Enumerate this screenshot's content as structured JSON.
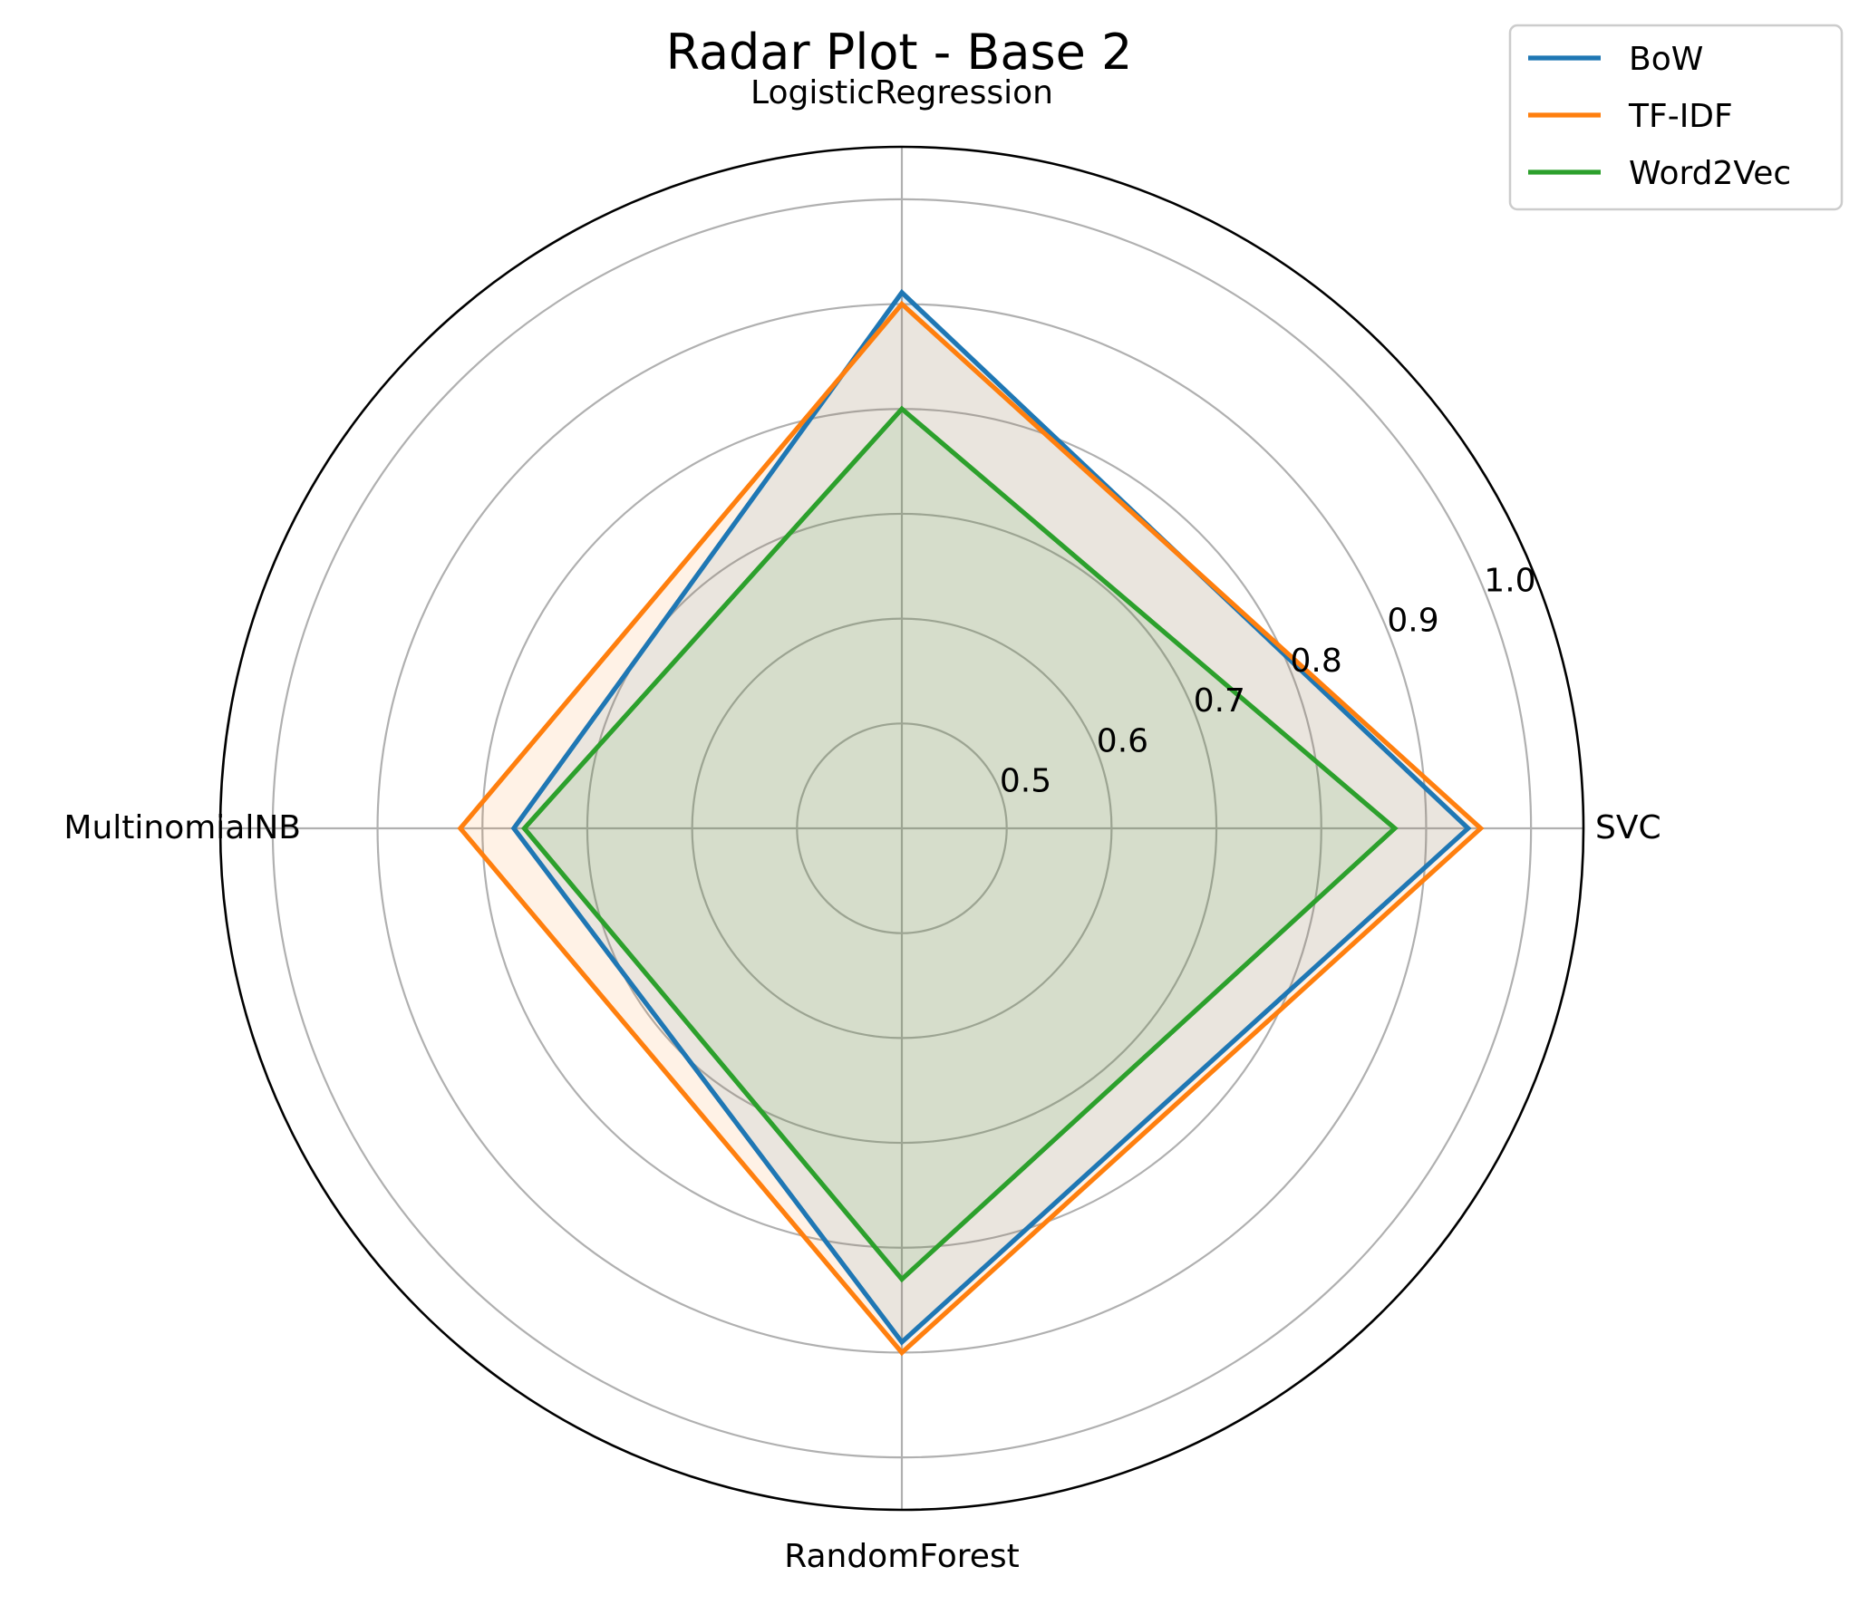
{
  "chart_data": {
    "type": "radar",
    "title": "Radar Plot - Base 2",
    "categories": [
      "LogisticRegression",
      "SVC",
      "RandomForest",
      "MultinomialNB"
    ],
    "r_ticks": [
      0.5,
      0.6,
      0.7,
      0.8,
      0.9,
      1.0
    ],
    "r_tick_labels": [
      "0.5",
      "0.6",
      "0.7",
      "0.8",
      "0.9",
      "1.0"
    ],
    "rlim": [
      0.4,
      1.05
    ],
    "grid": true,
    "legend_position": "top-right",
    "series": [
      {
        "name": "BoW",
        "values": [
          0.911,
          0.94,
          0.89,
          0.77
        ],
        "color": "#1f77b4",
        "fill": true
      },
      {
        "name": "TF-IDF",
        "values": [
          0.9,
          0.952,
          0.9,
          0.821
        ],
        "color": "#ff7f0e",
        "fill": true
      },
      {
        "name": "Word2Vec",
        "values": [
          0.8,
          0.87,
          0.83,
          0.76
        ],
        "color": "#2ca02c",
        "fill": true
      }
    ]
  }
}
